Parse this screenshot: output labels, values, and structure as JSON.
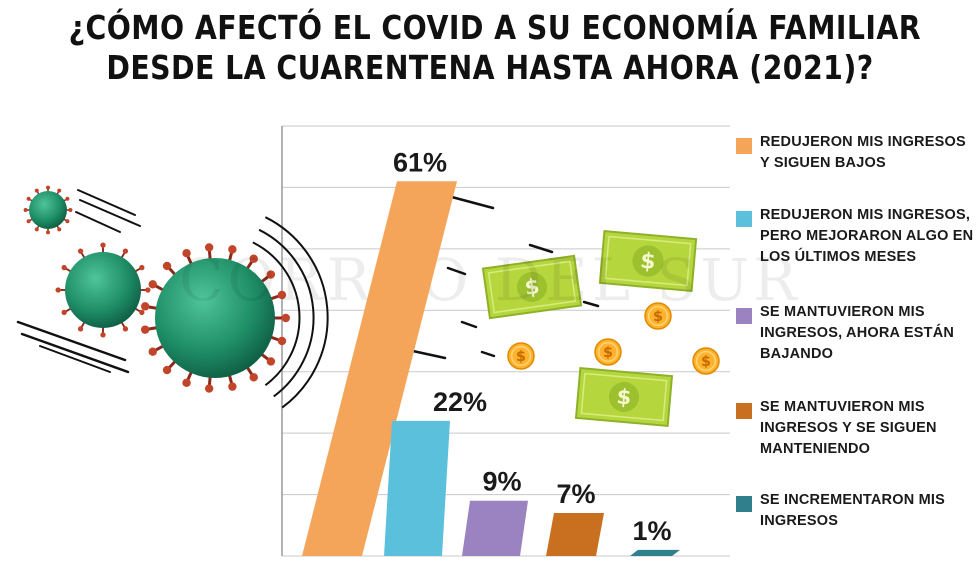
{
  "title_lines": [
    "¿CÓMO AFECTÓ EL COVID A SU ECONOMÍA FAMILIAR",
    "DESDE LA CUARENTENA HASTA  AHORA (2021)?"
  ],
  "watermark": "CORREO DEL SUR",
  "icons": [
    "coronavirus-icon",
    "dollar-bill-icon",
    "dollar-coin-icon"
  ],
  "chart_data": {
    "type": "bar",
    "title": "¿CÓMO AFECTÓ EL COVID A SU ECONOMÍA FAMILIAR DESDE LA CUARENTENA HASTA  AHORA (2021)?",
    "unit": "%",
    "ylim": [
      0,
      70
    ],
    "grid": true,
    "legend": "right",
    "categories": [
      "REDUJERON MIS INGRESOS Y SIGUEN BAJOS",
      "REDUJERON MIS INGRESOS, PERO MEJORARON ALGO EN LOS ÚLTIMOS MESES",
      "SE MANTUVIERON MIS INGRESOS, AHORA ESTÁN BAJANDO",
      "SE MANTUVIERON MIS INGRESOS Y SE SIGUEN MANTENIENDO",
      "SE INCREMENTARON MIS INGRESOS"
    ],
    "values": [
      61,
      22,
      9,
      7,
      1
    ],
    "labels": [
      "61%",
      "22%",
      "9%",
      "7%",
      "1%"
    ],
    "colors": [
      "#f5a55a",
      "#5bc0dc",
      "#9b82c0",
      "#c8701f",
      "#2f7f8c"
    ]
  },
  "legend": {
    "items": [
      {
        "label_lines": [
          "REDUJERON MIS INGRESOS",
          "Y SIGUEN BAJOS"
        ],
        "color": "#f5a55a"
      },
      {
        "label_lines": [
          "REDUJERON MIS INGRESOS,",
          "PERO MEJORARON ALGO EN",
          "LOS ÚLTIMOS MESES"
        ],
        "color": "#5bc0dc"
      },
      {
        "label_lines": [
          "SE MANTUVIERON MIS",
          "INGRESOS, AHORA ESTÁN",
          "BAJANDO"
        ],
        "color": "#9b82c0"
      },
      {
        "label_lines": [
          "SE MANTUVIERON MIS",
          "INGRESOS Y SE SIGUEN",
          "MANTENIENDO"
        ],
        "color": "#c8701f"
      },
      {
        "label_lines": [
          "SE INCREMENTARON MIS",
          "INGRESOS"
        ],
        "color": "#2f7f8c"
      }
    ]
  }
}
